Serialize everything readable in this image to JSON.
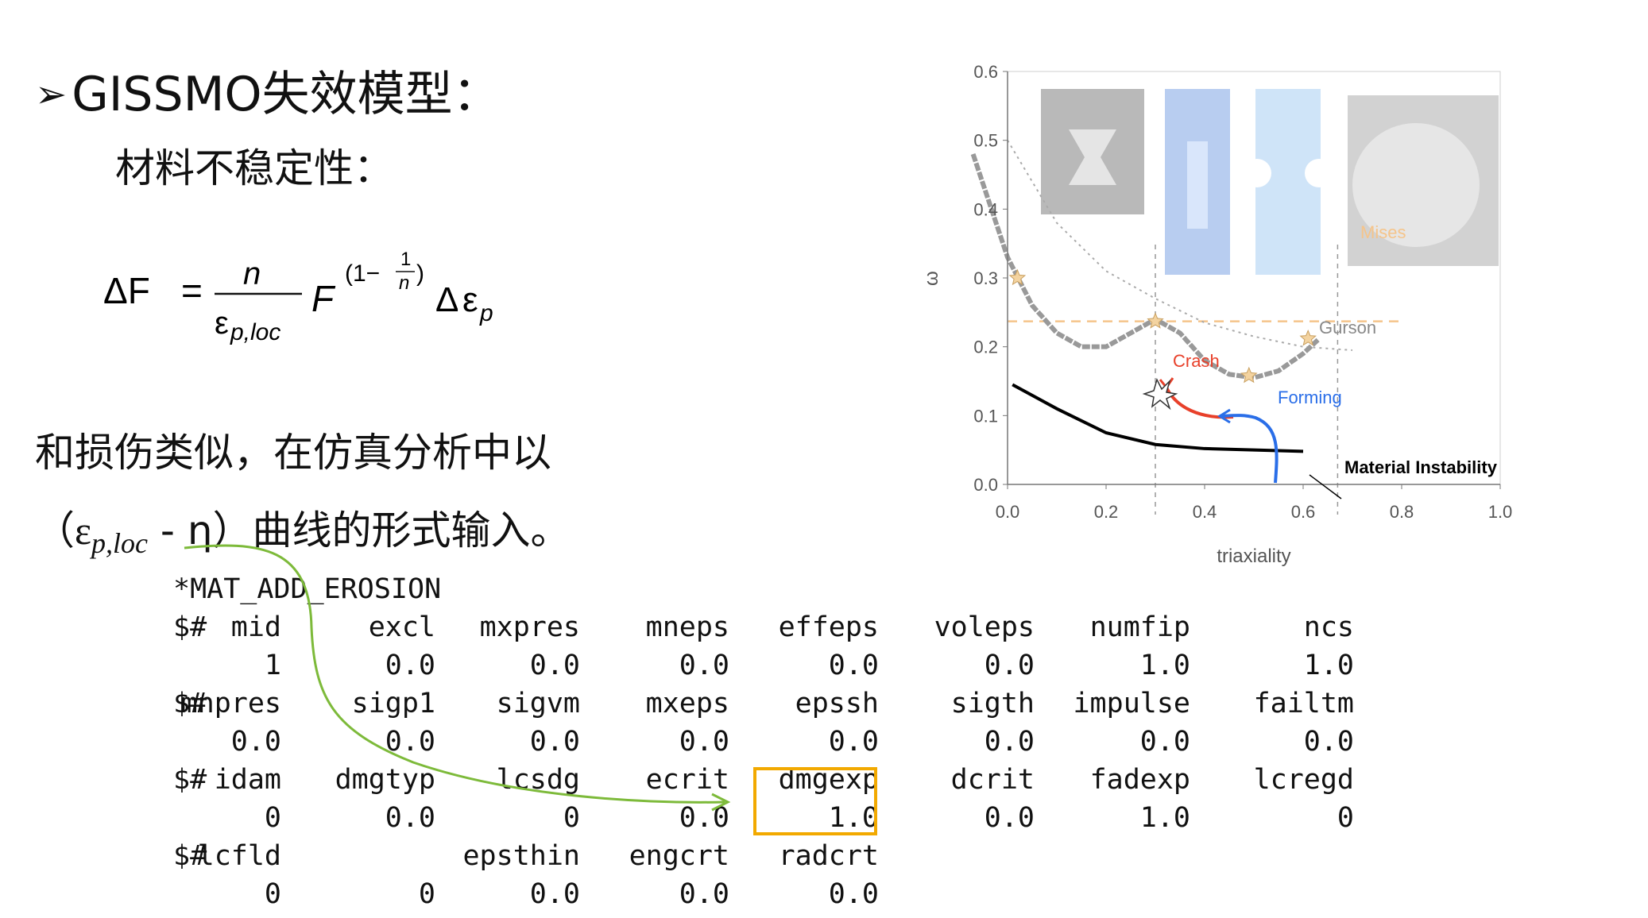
{
  "title": {
    "bullet": "➢",
    "text": "GISSMO失效模型："
  },
  "subtitle": "材料不稳定性：",
  "formula": {
    "lhs": "ΔF",
    "eq": "=",
    "num": "n",
    "den_base": "ε",
    "den_sub": "p,loc",
    "F": "F",
    "exp_open": "(1−",
    "exp_num": "1",
    "exp_den": "n",
    "exp_close": ")",
    "delta": "Δ",
    "eps": "ε",
    "eps_sub": "p"
  },
  "body": {
    "line1": "和损伤类似，在仿真分析中以",
    "line2_open": "（",
    "line2_eps": "ε",
    "line2_sub": "p,loc",
    "line2_rest": " - η）曲线的形式输入。"
  },
  "code": {
    "header": "*MAT_ADD_EROSION",
    "rows": [
      {
        "lead": "$#",
        "cells": [
          "mid",
          "excl",
          "mxpres",
          "mneps",
          "effeps",
          "voleps",
          "numfip",
          "ncs"
        ]
      },
      {
        "lead": "",
        "cells": [
          "1",
          "0.0",
          "0.0",
          "0.0",
          "0.0",
          "0.0",
          "1.0",
          "1.0"
        ]
      },
      {
        "lead": "$#",
        "cells": [
          "mnpres",
          "sigp1",
          "sigvm",
          "mxeps",
          "epssh",
          "sigth",
          "impulse",
          "failtm"
        ]
      },
      {
        "lead": "",
        "cells": [
          "0.0",
          "0.0",
          "0.0",
          "0.0",
          "0.0",
          "0.0",
          "0.0",
          "0.0"
        ]
      },
      {
        "lead": "$#",
        "cells": [
          "idam",
          "dmgtyp",
          "lcsdg",
          "ecrit",
          "dmgexp",
          "dcrit",
          "fadexp",
          "lcregd"
        ]
      },
      {
        "lead": "",
        "cells": [
          "0",
          "0.0",
          "0",
          "0.0",
          "1.0",
          "0.0",
          "1.0",
          "0"
        ]
      },
      {
        "lead": "$#",
        "cells": [
          "lcfld",
          "",
          "epsthin",
          "engcrt",
          "radcrt",
          "",
          "",
          ""
        ]
      },
      {
        "lead": "",
        "cells": [
          "0",
          "0",
          "0.0",
          "0.0",
          "0.0",
          "",
          "",
          ""
        ]
      }
    ]
  },
  "chart_data": {
    "type": "line",
    "xlabel": "triaxiality",
    "ylabel": "ω",
    "xlim": [
      0.0,
      1.0
    ],
    "ylim": [
      0.0,
      0.6
    ],
    "x_ticks": [
      "0.0",
      "0.2",
      "0.4",
      "0.6",
      "0.8",
      "1.0"
    ],
    "y_ticks": [
      "0.0",
      "0.1",
      "0.2",
      "0.3",
      "0.4",
      "0.5",
      "0.6"
    ],
    "series": [
      {
        "name": "Mises",
        "style": "dashed",
        "color": "#f5c48a",
        "x": [
          0.0,
          0.8
        ],
        "y": [
          0.237,
          0.237
        ]
      },
      {
        "name": "Gurson",
        "style": "dotted",
        "color": "#aaaaaa",
        "x": [
          0.0,
          0.1,
          0.2,
          0.3,
          0.4,
          0.5,
          0.6,
          0.7
        ],
        "y": [
          0.5,
          0.38,
          0.31,
          0.27,
          0.235,
          0.215,
          0.2,
          0.195
        ]
      },
      {
        "name": "",
        "style": "fracture",
        "color": "#999999",
        "x": [
          -0.07,
          0.0,
          0.05,
          0.1,
          0.15,
          0.2,
          0.25,
          0.3,
          0.35,
          0.4,
          0.45,
          0.5,
          0.55,
          0.6,
          0.63
        ],
        "y": [
          0.48,
          0.33,
          0.26,
          0.22,
          0.2,
          0.2,
          0.22,
          0.24,
          0.22,
          0.18,
          0.16,
          0.155,
          0.165,
          0.19,
          0.21
        ]
      },
      {
        "name": "Material Instability",
        "style": "solid",
        "color": "#000000",
        "x": [
          0.01,
          0.1,
          0.2,
          0.3,
          0.4,
          0.5,
          0.6
        ],
        "y": [
          0.145,
          0.11,
          0.075,
          0.058,
          0.052,
          0.05,
          0.048
        ]
      }
    ],
    "annotations": [
      "Mises",
      "Gurson",
      "Crash",
      "Forming",
      "Material Instability"
    ],
    "colors": {
      "crash": "#e8402a",
      "forming": "#2a6ee8",
      "mises": "#f5c48a",
      "highlight": "#f2a900",
      "connector": "#7dba3a"
    }
  }
}
